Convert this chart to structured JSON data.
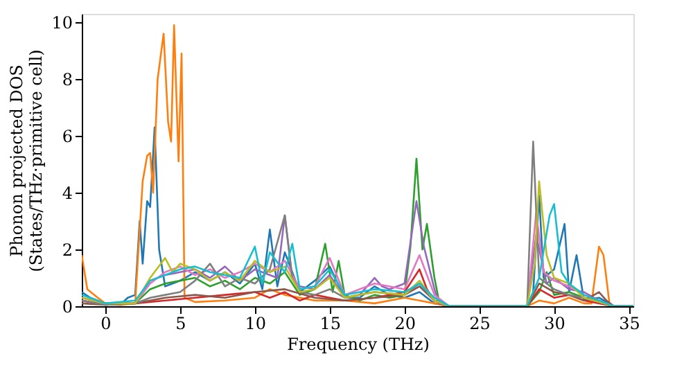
{
  "chart_data": {
    "type": "line",
    "xlabel": "Frequency (THz)",
    "ylabel": "Phonon projected DOS\n(States/THz·primitive cell)",
    "xlim": [
      -1.57,
      35.3
    ],
    "ylim": [
      0,
      10.3
    ],
    "xticks": [
      0,
      5,
      10,
      15,
      20,
      25,
      30,
      35
    ],
    "yticks": [
      0,
      2,
      4,
      6,
      8,
      10
    ],
    "grid": false,
    "legend": false,
    "marker": "none",
    "line_style": "solid",
    "series": [
      {
        "color": "#1f77b4",
        "x": [
          -1.57,
          -1,
          0,
          1,
          1.5,
          2,
          2.3,
          2.5,
          2.8,
          3.0,
          3.3,
          3.6,
          4,
          5,
          6,
          7,
          8,
          9,
          10,
          10.5,
          11,
          11.5,
          12,
          13,
          14,
          15,
          16,
          17,
          18,
          19,
          20,
          21,
          22,
          23,
          28.2,
          28.6,
          29,
          29.3,
          30,
          30.7,
          31,
          31.5,
          32,
          33,
          34,
          35.3
        ],
        "values": [
          0.5,
          0.3,
          0.1,
          0.05,
          0.3,
          0.4,
          3.0,
          1.5,
          3.7,
          3.5,
          6.3,
          2.0,
          0.7,
          0.9,
          1.2,
          0.9,
          1.2,
          0.8,
          1.5,
          0.6,
          2.7,
          0.7,
          1.9,
          0.5,
          0.9,
          1.4,
          0.3,
          0.3,
          0.7,
          0.4,
          0.3,
          0.5,
          0.1,
          0,
          0,
          0.5,
          3.9,
          1.0,
          1.3,
          2.9,
          0.5,
          1.8,
          0.2,
          0.3,
          0,
          0
        ]
      },
      {
        "color": "#ff7f0e",
        "x": [
          -1.57,
          -1.2,
          -0.5,
          0,
          1,
          2,
          2.5,
          2.8,
          3.0,
          3.2,
          3.5,
          3.9,
          4.2,
          4.4,
          4.6,
          4.9,
          5.1,
          5.3,
          6,
          8,
          10,
          11,
          12,
          14,
          16,
          18,
          20,
          21,
          22,
          23,
          28.2,
          29,
          30,
          31,
          32,
          32.5,
          33,
          33.3,
          33.7,
          34,
          35.3
        ],
        "values": [
          1.8,
          0.6,
          0.3,
          0.1,
          0.05,
          0.1,
          4.4,
          5.3,
          5.4,
          4.0,
          8.0,
          9.6,
          6.5,
          5.8,
          9.9,
          5.1,
          8.9,
          0.3,
          0.15,
          0.2,
          0.3,
          0.6,
          0.4,
          0.2,
          0.2,
          0.1,
          0.3,
          0.2,
          0.1,
          0,
          0,
          0.2,
          0.1,
          0.3,
          0.1,
          0.1,
          2.1,
          1.8,
          0.1,
          0,
          0
        ]
      },
      {
        "color": "#2ca02c",
        "x": [
          -1.57,
          0,
          2,
          3,
          4,
          5,
          6,
          7,
          8,
          9,
          10,
          11,
          12,
          13,
          14,
          14.7,
          15.2,
          15.6,
          16,
          17,
          18,
          19,
          20,
          20.4,
          20.8,
          21.2,
          21.5,
          22,
          22.3,
          23,
          28.2,
          29,
          29.5,
          30,
          31,
          32,
          33,
          34,
          35.3
        ],
        "values": [
          0.3,
          0.1,
          0.1,
          0.6,
          0.8,
          0.9,
          1.0,
          0.7,
          0.9,
          0.6,
          1.0,
          0.8,
          1.2,
          0.4,
          0.6,
          2.2,
          0.5,
          1.6,
          0.4,
          0.2,
          0.4,
          0.3,
          0.4,
          2.1,
          5.2,
          2.0,
          2.9,
          1.0,
          0.2,
          0,
          0,
          0.5,
          1.2,
          0.4,
          0.5,
          0.3,
          0.2,
          0,
          0
        ]
      },
      {
        "color": "#d62728",
        "x": [
          -1.57,
          0,
          2,
          4,
          6,
          8,
          10,
          11,
          12,
          13,
          14,
          15,
          16,
          18,
          20,
          21,
          21.5,
          22,
          23,
          28.2,
          29,
          30,
          31,
          32,
          34,
          35.3
        ],
        "values": [
          0.2,
          0.05,
          0.1,
          0.2,
          0.3,
          0.4,
          0.5,
          0.3,
          0.5,
          0.2,
          0.4,
          0.3,
          0.2,
          0.3,
          0.5,
          1.3,
          0.6,
          0.2,
          0,
          0,
          0.6,
          0.3,
          0.4,
          0.2,
          0,
          0
        ]
      },
      {
        "color": "#9467bd",
        "x": [
          -1.57,
          0,
          2,
          3,
          4,
          5,
          6,
          7,
          8,
          9,
          10,
          11,
          11.5,
          12,
          12.5,
          13,
          14,
          15,
          16,
          17,
          18,
          18.5,
          19,
          20,
          20.8,
          21.3,
          22,
          22.3,
          23,
          28.2,
          28.8,
          29.5,
          30,
          31,
          32,
          33,
          34,
          35.3
        ],
        "values": [
          0.3,
          0.1,
          0.1,
          0.9,
          1.1,
          1.2,
          1.3,
          1.0,
          1.4,
          0.9,
          1.3,
          1.1,
          1.0,
          3.2,
          1.0,
          0.7,
          0.6,
          1.1,
          0.3,
          0.4,
          1.0,
          0.7,
          0.6,
          0.8,
          3.7,
          2.1,
          0.6,
          0.1,
          0,
          0,
          2.5,
          0.8,
          1.0,
          0.6,
          0.5,
          0.2,
          0,
          0
        ]
      },
      {
        "color": "#8c564b",
        "x": [
          -1.57,
          0,
          2,
          4,
          6,
          8,
          10,
          12,
          14,
          16,
          18,
          20,
          21,
          22,
          23,
          28.2,
          29,
          30,
          31,
          32,
          33,
          33.5,
          34,
          35.3
        ],
        "values": [
          0.1,
          0.05,
          0.1,
          0.3,
          0.4,
          0.3,
          0.5,
          0.6,
          0.3,
          0.2,
          0.3,
          0.4,
          0.7,
          0.2,
          0,
          0,
          0.8,
          0.5,
          0.4,
          0.2,
          0.5,
          0.2,
          0,
          0
        ]
      },
      {
        "color": "#e377c2",
        "x": [
          -1.57,
          0,
          2,
          3,
          4,
          5,
          6,
          7,
          8,
          9,
          10,
          11,
          12,
          13,
          14,
          15,
          16,
          18,
          20,
          21,
          22,
          23,
          28.2,
          28.8,
          29.3,
          30,
          31,
          32,
          34,
          35.3
        ],
        "values": [
          0.3,
          0.1,
          0.1,
          0.8,
          1.2,
          1.4,
          1.1,
          1.3,
          1.0,
          1.2,
          1.5,
          1.2,
          1.6,
          0.6,
          0.7,
          1.7,
          0.4,
          0.8,
          0.6,
          1.8,
          0.4,
          0,
          0,
          3.3,
          1.2,
          0.9,
          0.7,
          0.4,
          0,
          0
        ]
      },
      {
        "color": "#7f7f7f",
        "x": [
          -1.57,
          0,
          2,
          3,
          4,
          5,
          6,
          7,
          8,
          9,
          10,
          11,
          12,
          12.5,
          13,
          14,
          15,
          16,
          18,
          20,
          21,
          22,
          23,
          28.2,
          28.6,
          29,
          30,
          31,
          32,
          34,
          35.3
        ],
        "values": [
          0.2,
          0.05,
          0.1,
          0.3,
          0.4,
          0.5,
          0.9,
          1.5,
          0.7,
          1.0,
          0.8,
          1.3,
          3.2,
          1.0,
          0.5,
          0.4,
          0.6,
          0.3,
          0.5,
          0.4,
          0.8,
          0.2,
          0,
          0,
          5.8,
          1.0,
          0.6,
          0.4,
          0.3,
          0,
          0
        ]
      },
      {
        "color": "#bcbd22",
        "x": [
          -1.57,
          0,
          2,
          3,
          4,
          4.5,
          5,
          6,
          7,
          8,
          9,
          10,
          11,
          12,
          13,
          14,
          15,
          16,
          18,
          20,
          21,
          22,
          23,
          28.2,
          28.7,
          29,
          29.5,
          30,
          31,
          32,
          34,
          35.3
        ],
        "values": [
          0.3,
          0.1,
          0.1,
          1.0,
          1.7,
          1.2,
          1.5,
          1.3,
          0.9,
          1.2,
          0.9,
          1.6,
          1.2,
          1.4,
          0.5,
          0.6,
          1.0,
          0.3,
          0.5,
          0.4,
          0.9,
          0.2,
          0,
          0,
          1.5,
          4.4,
          1.8,
          1.0,
          0.8,
          0.3,
          0,
          0
        ]
      },
      {
        "color": "#17becf",
        "x": [
          -1.57,
          0,
          2,
          3,
          4,
          5,
          6,
          7,
          8,
          9,
          10,
          10.5,
          11,
          12,
          12.5,
          13,
          14,
          15,
          16,
          18,
          20,
          21,
          22,
          23,
          28.2,
          29,
          29.7,
          30,
          30.5,
          31,
          32,
          34,
          35.3
        ],
        "values": [
          0.4,
          0.1,
          0.2,
          0.9,
          1.1,
          1.3,
          1.4,
          1.2,
          1.1,
          1.0,
          2.1,
          0.8,
          1.9,
          1.2,
          2.2,
          0.6,
          0.7,
          1.3,
          0.4,
          0.6,
          0.5,
          0.8,
          0.3,
          0,
          0,
          1.0,
          3.2,
          3.6,
          1.2,
          0.8,
          0.4,
          0,
          0
        ]
      }
    ]
  }
}
